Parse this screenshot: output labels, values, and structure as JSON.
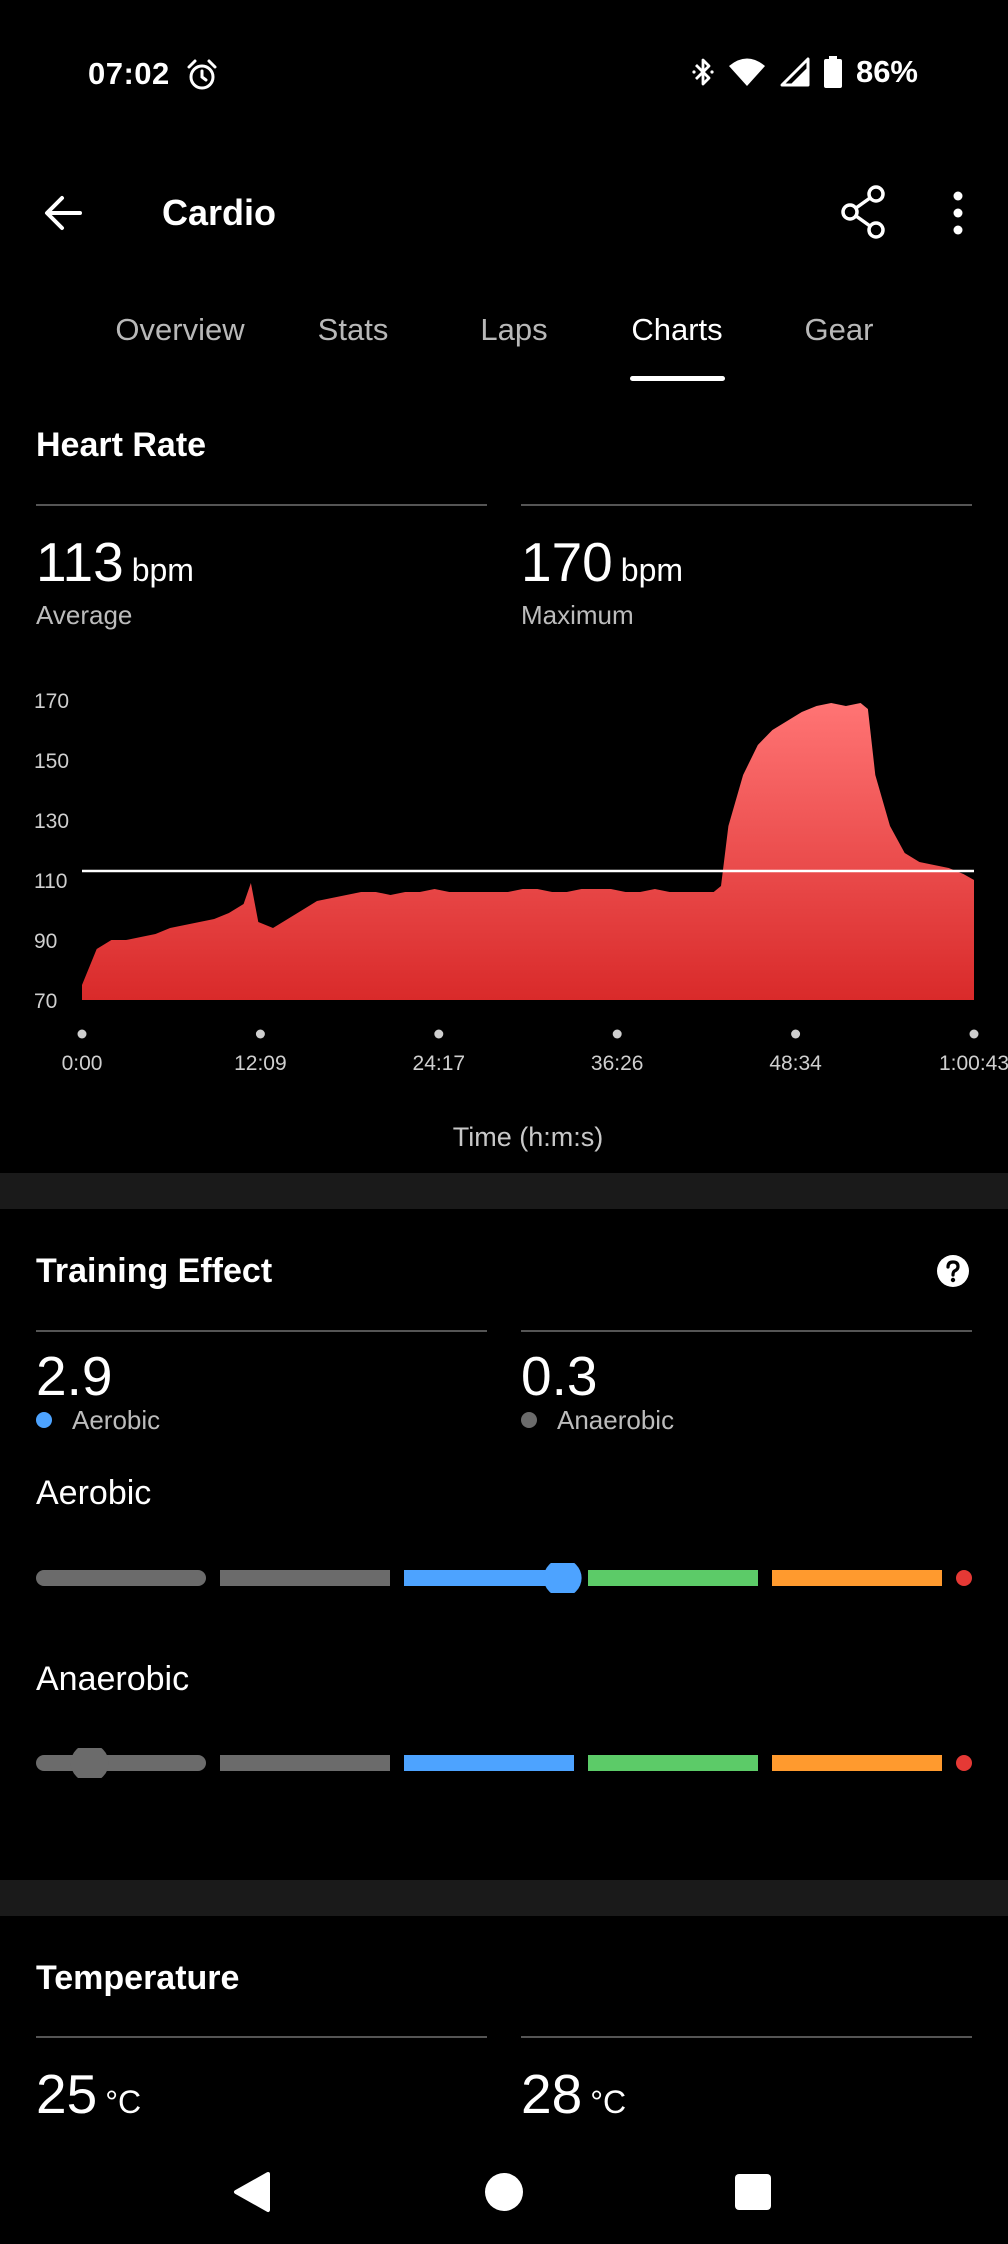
{
  "status_bar": {
    "time": "07:02",
    "battery": "86%",
    "icons": [
      "alarm-icon",
      "bluetooth-icon",
      "wifi-icon",
      "signal-icon",
      "battery-icon"
    ]
  },
  "app_bar": {
    "title": "Cardio",
    "icons": [
      "back-arrow-icon",
      "share-icon",
      "more-vert-icon"
    ]
  },
  "tabs": [
    {
      "label": "Overview",
      "active": false
    },
    {
      "label": "Stats",
      "active": false
    },
    {
      "label": "Laps",
      "active": false
    },
    {
      "label": "Charts",
      "active": true
    },
    {
      "label": "Gear",
      "active": false
    }
  ],
  "heart_rate": {
    "title": "Heart Rate",
    "average": {
      "value": "113",
      "unit": "bpm",
      "label": "Average"
    },
    "maximum": {
      "value": "170",
      "unit": "bpm",
      "label": "Maximum"
    }
  },
  "chart_data": {
    "type": "area",
    "title": "",
    "xlabel": "Time (h:m:s)",
    "ylabel": "",
    "color": "#e53935",
    "y_ticks": [
      "170",
      "150",
      "130",
      "110",
      "90",
      "70"
    ],
    "ylim": [
      70,
      170
    ],
    "x_ticks": [
      "0:00",
      "12:09",
      "24:17",
      "36:26",
      "48:34",
      "1:00:43"
    ],
    "xlim_minutes": [
      0,
      60.72
    ],
    "reference_line": {
      "value": 113,
      "label": "Average"
    },
    "grid": false,
    "series": [
      {
        "x_minutes": [
          0,
          1,
          2,
          3,
          4,
          5,
          6,
          7,
          8,
          9,
          10,
          11,
          11.5,
          12,
          13,
          14,
          15,
          16,
          17,
          18,
          19,
          20,
          21,
          22,
          23,
          24,
          25,
          26,
          27,
          28,
          29,
          30,
          31,
          32,
          33,
          34,
          35,
          36,
          37,
          38,
          39,
          40,
          41,
          42,
          43,
          43.5,
          44,
          45,
          46,
          47,
          48,
          49,
          50,
          51,
          52,
          53,
          53.5,
          54,
          55,
          56,
          57,
          58,
          59,
          60,
          60.72
        ],
        "values": [
          75,
          87,
          90,
          90,
          91,
          92,
          94,
          95,
          96,
          97,
          99,
          102,
          109,
          96,
          94,
          97,
          100,
          103,
          104,
          105,
          106,
          106,
          105,
          106,
          106,
          107,
          106,
          106,
          106,
          106,
          106,
          107,
          107,
          106,
          106,
          107,
          107,
          107,
          106,
          106,
          107,
          106,
          106,
          106,
          106,
          108,
          128,
          145,
          155,
          160,
          163,
          166,
          168,
          169,
          168,
          169,
          167,
          145,
          128,
          119,
          116,
          115,
          114,
          112,
          110
        ]
      }
    ]
  },
  "training_effect": {
    "title": "Training Effect",
    "aerobic": {
      "value": "2.9",
      "label": "Aerobic",
      "color": "#4da3ff",
      "level": 2.9
    },
    "anaerobic": {
      "value": "0.3",
      "label": "Anaerobic",
      "color": "#6b6b6b",
      "level": 0.3
    },
    "aerobic_heading": "Aerobic",
    "anaerobic_heading": "Anaerobic",
    "scale_colors": [
      "#6b6b6b",
      "#6b6b6b",
      "#4da3ff",
      "#5ccb68",
      "#ff9a2e",
      "#e53935"
    ]
  },
  "temperature": {
    "title": "Temperature",
    "min": {
      "value": "25",
      "unit": "°C"
    },
    "max": {
      "value": "28",
      "unit": "°C"
    }
  }
}
